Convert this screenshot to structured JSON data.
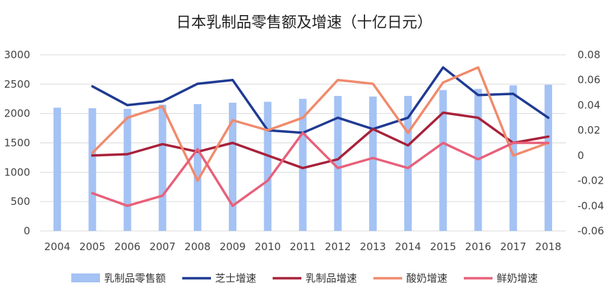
{
  "chart_data": {
    "type": "bar",
    "title": "日本乳制品零售额及增速（十亿日元）",
    "categories": [
      "2004",
      "2005",
      "2006",
      "2007",
      "2008",
      "2009",
      "2010",
      "2011",
      "2012",
      "2013",
      "2014",
      "2015",
      "2016",
      "2017",
      "2018"
    ],
    "y_left": {
      "range": [
        0,
        3000
      ],
      "ticks": [
        "0",
        "500",
        "1000",
        "1500",
        "2000",
        "2500",
        "3000"
      ],
      "tick_values": [
        0,
        500,
        1000,
        1500,
        2000,
        2500,
        3000
      ]
    },
    "y_right": {
      "range": [
        -0.06,
        0.08
      ],
      "ticks": [
        "-0.06",
        "-0.04",
        "-0.02",
        "0",
        "0.02",
        "0.04",
        "0.06",
        "0.08"
      ],
      "tick_values": [
        -0.06,
        -0.04,
        -0.02,
        0,
        0.02,
        0.04,
        0.06,
        0.08
      ]
    },
    "grid": true,
    "legend_position": "bottom",
    "series": [
      {
        "name": "乳制品零售额",
        "type": "bar",
        "axis": "left",
        "color": "#a4c2f4",
        "values": [
          2100,
          2090,
          2080,
          2150,
          2160,
          2185,
          2200,
          2250,
          2300,
          2290,
          2300,
          2400,
          2420,
          2480,
          2490
        ]
      },
      {
        "name": "芝士增速",
        "type": "line",
        "axis": "right",
        "color": "#1f3a93",
        "values": [
          null,
          0.055,
          0.04,
          0.043,
          0.057,
          0.06,
          0.02,
          0.018,
          0.03,
          0.021,
          0.03,
          0.07,
          0.048,
          0.049,
          0.03
        ]
      },
      {
        "name": "乳制品增速",
        "type": "line",
        "axis": "right",
        "color": "#a8213a",
        "values": [
          null,
          0.0,
          0.001,
          0.009,
          0.003,
          0.01,
          0.0,
          -0.01,
          -0.003,
          0.021,
          0.008,
          0.034,
          0.03,
          0.01,
          0.015
        ]
      },
      {
        "name": "酸奶增速",
        "type": "line",
        "axis": "right",
        "color": "#f08a6c",
        "values": [
          null,
          0.002,
          0.03,
          0.039,
          -0.02,
          0.028,
          0.02,
          0.03,
          0.06,
          0.057,
          0.018,
          0.058,
          0.07,
          0.0,
          0.01
        ]
      },
      {
        "name": "鲜奶增速",
        "type": "line",
        "axis": "right",
        "color": "#e8607a",
        "values": [
          null,
          -0.03,
          -0.04,
          -0.032,
          0.005,
          -0.04,
          -0.02,
          0.018,
          -0.01,
          -0.002,
          -0.01,
          0.01,
          -0.003,
          0.01,
          0.01
        ]
      }
    ]
  }
}
